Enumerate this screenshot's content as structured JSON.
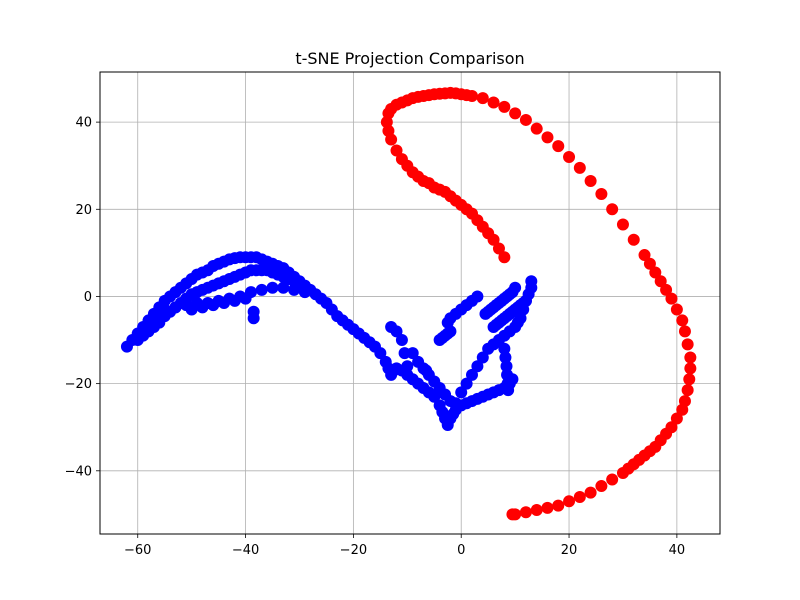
{
  "chart_data": {
    "type": "scatter",
    "title": "t-SNE Projection Comparison",
    "xlabel": "",
    "ylabel": "",
    "xlim": [
      -67,
      48
    ],
    "ylim": [
      -54.5,
      51.5
    ],
    "xticks": [
      -60,
      -40,
      -20,
      0,
      20,
      40
    ],
    "yticks": [
      -40,
      -20,
      0,
      20,
      40
    ],
    "xtick_labels": [
      "−60",
      "−40",
      "−20",
      "0",
      "20",
      "40"
    ],
    "ytick_labels": [
      "−40",
      "−20",
      "0",
      "20",
      "40"
    ],
    "grid": true,
    "legend": "none",
    "series": [
      {
        "color": "#0000ff",
        "x": [
          -62,
          -61,
          -60,
          -59,
          -58,
          -57,
          -56,
          -55,
          -54,
          -53,
          -52,
          -51,
          -50,
          -49,
          -48,
          -47,
          -46,
          -45,
          -44,
          -43,
          -42,
          -41,
          -40,
          -39,
          -38,
          -37,
          -36,
          -35,
          -34,
          -33,
          -32,
          -31,
          -30,
          -29,
          -28,
          -27,
          -26,
          -25,
          -24,
          -23,
          -22,
          -21,
          -20,
          -19,
          -18,
          -17,
          -16,
          -15,
          -14,
          -13.5,
          -13,
          -12.5,
          -12,
          -11,
          -10,
          -9,
          -8,
          -7,
          -6,
          -5,
          -4,
          -3.5,
          -3,
          -2.5,
          -2,
          -1.5,
          -1,
          0,
          1,
          2,
          3,
          4,
          5,
          6,
          7,
          8,
          9,
          9.5,
          -60,
          -59,
          -58,
          -57,
          -56,
          -55,
          -54,
          -53,
          -52,
          -51,
          -50,
          -49,
          -48,
          -47,
          -46,
          -45,
          -44,
          -43,
          -42,
          -41,
          -40,
          -39,
          -38,
          -37,
          -36,
          -35,
          -34,
          -33,
          -32,
          -31,
          -30,
          -55,
          -53,
          -51,
          -49,
          -47,
          -45,
          -43,
          -41,
          -39,
          -37,
          -35,
          -33,
          -31,
          -29,
          -38.5,
          -38.5,
          -50,
          -48,
          -46,
          -44,
          -42,
          -40,
          -13,
          -12,
          -11,
          -10.5,
          -10,
          -9,
          -8,
          -7,
          -6.5,
          -6,
          -5,
          -4,
          -3,
          -2,
          -1,
          0,
          1,
          2,
          3,
          4,
          5,
          6,
          7,
          8,
          9,
          10,
          10.5,
          11,
          11.5,
          12,
          12.5,
          13,
          13,
          -4,
          -3.5,
          -3,
          -2.5,
          -2,
          4.5,
          5,
          5.5,
          6,
          6.5,
          7,
          7.5,
          8,
          8.5,
          9,
          9.5,
          10,
          6,
          6.5,
          7,
          7.5,
          8,
          8.5,
          9,
          9.5,
          10,
          10.5,
          11,
          11.5,
          12,
          8,
          8.2,
          8.4,
          8.5,
          8.6,
          8.7,
          -2.5,
          -2,
          -1,
          0,
          1,
          2,
          3
        ],
        "y": [
          -11.5,
          -10,
          -8.5,
          -7,
          -5.5,
          -4,
          -2.5,
          -1,
          0,
          1,
          2,
          3,
          4,
          5,
          5.5,
          6,
          7,
          7.5,
          8,
          8.5,
          8.8,
          9,
          9,
          9,
          9,
          8.5,
          8,
          7.5,
          7,
          6.5,
          5.5,
          4.5,
          3.5,
          2.5,
          1.5,
          0.5,
          -0.5,
          -1.5,
          -3,
          -4.5,
          -5.5,
          -6.5,
          -7.5,
          -8.5,
          -9.5,
          -10.5,
          -11.5,
          -13,
          -15,
          -16.5,
          -18,
          -17,
          -16.5,
          -17,
          -18,
          -19,
          -20,
          -21,
          -22,
          -23,
          -25,
          -26.5,
          -28,
          -29.5,
          -28,
          -27,
          -26,
          -25,
          -24.5,
          -24,
          -23.5,
          -23,
          -22.5,
          -22,
          -21.5,
          -21,
          -20,
          -19,
          -10,
          -9,
          -8,
          -7,
          -6,
          -4.5,
          -3.5,
          -2.5,
          -1.5,
          -0.5,
          0.5,
          1,
          1.5,
          2,
          2.5,
          3,
          3.5,
          4,
          4.5,
          5,
          5.5,
          6,
          6,
          6,
          6,
          5.5,
          5,
          4.5,
          4,
          3.5,
          3,
          -3,
          -2.5,
          -2,
          -1.5,
          -1.5,
          -1,
          -0.5,
          0,
          1,
          1.5,
          2,
          2,
          1.5,
          1,
          -3.5,
          -5,
          -3,
          -2.5,
          -2,
          -1.5,
          -1,
          -0.5,
          -7,
          -8,
          -10,
          -13,
          -16,
          -13,
          -15,
          -16.5,
          -17,
          -18,
          -19.5,
          -21,
          -22.5,
          -24,
          -24.5,
          -22,
          -20,
          -18,
          -16,
          -14,
          -12,
          -11,
          -10,
          -9,
          -8,
          -7,
          -6,
          -5,
          -3,
          -1,
          0.5,
          2,
          3.5,
          -10,
          -9.5,
          -9,
          -8.5,
          -8,
          -4,
          -3.5,
          -3,
          -2.5,
          -2,
          -1.5,
          -1,
          -0.5,
          0,
          0.5,
          1,
          2,
          -7,
          -6.5,
          -6,
          -5.5,
          -5,
          -4.5,
          -4,
          -3.5,
          -3,
          -2.5,
          -2,
          -1.5,
          -1,
          -12,
          -14,
          -16,
          -18,
          -20,
          -21.5,
          -6,
          -5,
          -4,
          -3,
          -2,
          -1,
          0
        ]
      },
      {
        "color": "#ff0000",
        "x": [
          8,
          7,
          6,
          5,
          4,
          3,
          2,
          1,
          0,
          -1,
          -2,
          -3,
          -4,
          -5,
          -6,
          -7,
          -8,
          -9,
          -10,
          -11,
          -12,
          -13,
          -13.5,
          -13.8,
          -13.5,
          -13,
          -12,
          -11,
          -10,
          -9,
          -8,
          -7,
          -6,
          -5,
          -4,
          -3,
          -2,
          -1,
          0,
          1,
          2,
          4,
          6,
          8,
          10,
          12,
          14,
          16,
          18,
          20,
          22,
          24,
          26,
          28,
          30,
          32,
          34,
          35,
          36,
          37,
          38,
          39,
          40,
          41,
          41.5,
          42,
          42.5,
          42.5,
          42.3,
          42,
          41.5,
          41,
          40,
          39,
          38,
          37,
          36,
          35,
          34,
          33,
          32,
          31,
          30,
          28,
          26,
          24,
          22,
          20,
          18,
          16,
          14,
          12,
          10,
          9.5
        ],
        "y": [
          9,
          11,
          13,
          14.5,
          16,
          17.5,
          19,
          20,
          21,
          22,
          23,
          24,
          24.5,
          25,
          26,
          26.5,
          27.5,
          28.5,
          30,
          31.5,
          33.5,
          36,
          38,
          40,
          42,
          43,
          44,
          44.5,
          45,
          45.5,
          45.8,
          46,
          46.2,
          46.4,
          46.5,
          46.6,
          46.7,
          46.6,
          46.4,
          46.2,
          46,
          45.5,
          44.5,
          43.5,
          42,
          40.5,
          38.5,
          36.5,
          34.5,
          32,
          29.5,
          26.5,
          23.5,
          20,
          16.5,
          13,
          9.5,
          7.5,
          5.5,
          3.5,
          1.5,
          -0.5,
          -3,
          -5.5,
          -8,
          -11,
          -14,
          -16.5,
          -19,
          -21.5,
          -24,
          -26,
          -28,
          -30,
          -31.5,
          -33,
          -34.5,
          -35.5,
          -36.5,
          -37.5,
          -38.5,
          -39.5,
          -40.5,
          -42,
          -43.5,
          -45,
          -46,
          -47,
          -48,
          -48.5,
          -49,
          -49.5,
          -50,
          -50
        ]
      }
    ]
  }
}
